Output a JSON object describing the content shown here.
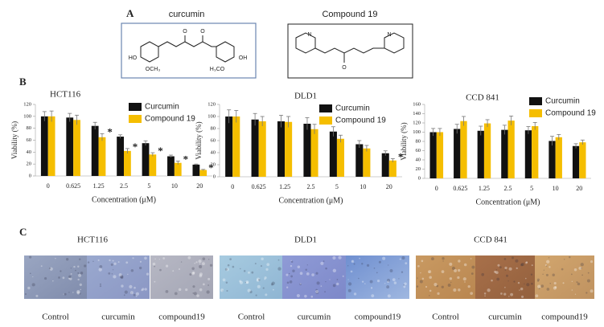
{
  "panel_labels": [
    "A",
    "B",
    "C"
  ],
  "structures": [
    {
      "name": "curcumin",
      "atoms": [
        "O",
        "O",
        "HO",
        "OCH₃",
        "H₃CO",
        "OH"
      ]
    },
    {
      "name": "Compound 19",
      "atoms": [
        "N",
        "N",
        "O"
      ]
    }
  ],
  "chart_data": [
    {
      "type": "bar",
      "title": "HCT116",
      "xlabel": "Concentration (μM)",
      "ylabel": "Viability (%)",
      "categories": [
        "0",
        "0.625",
        "1.25",
        "2.5",
        "5",
        "10",
        "20"
      ],
      "series": [
        {
          "name": "Curcumin",
          "color": "#111111",
          "values": [
            100,
            98,
            84,
            66,
            55,
            33,
            19
          ],
          "errors": [
            8,
            7,
            6,
            3,
            4,
            2,
            1
          ]
        },
        {
          "name": "Compound 19",
          "color": "#f5be00",
          "values": [
            100,
            94,
            65,
            42,
            36,
            22,
            10
          ],
          "errors": [
            9,
            8,
            6,
            4,
            3,
            3,
            1
          ]
        }
      ],
      "ylim": [
        0,
        120
      ],
      "yticks": [
        0,
        20,
        40,
        60,
        80,
        100,
        120
      ],
      "annotations": [
        {
          "text": "*",
          "category": "1.25"
        },
        {
          "text": "*",
          "category": "2.5"
        },
        {
          "text": "*",
          "category": "5"
        },
        {
          "text": "*",
          "category": "10"
        },
        {
          "text": "*",
          "category": "20"
        }
      ]
    },
    {
      "type": "bar",
      "title": "DLD1",
      "xlabel": "Concentration (μM)",
      "ylabel": "Viability (%)",
      "categories": [
        "0",
        "0.625",
        "1.25",
        "2.5",
        "5",
        "10",
        "20"
      ],
      "series": [
        {
          "name": "Curcumin",
          "color": "#111111",
          "values": [
            100,
            95,
            92,
            88,
            75,
            54,
            39
          ],
          "errors": [
            11,
            10,
            10,
            10,
            8,
            6,
            4
          ]
        },
        {
          "name": "Compound 19",
          "color": "#f5be00",
          "values": [
            100,
            92,
            91,
            79,
            63,
            47,
            27
          ],
          "errors": [
            10,
            8,
            9,
            8,
            6,
            5,
            3
          ]
        }
      ],
      "ylim": [
        0,
        120
      ],
      "yticks": [
        0,
        20,
        40,
        60,
        80,
        100,
        120
      ],
      "annotations": [
        {
          "text": "*",
          "category": "20"
        }
      ]
    },
    {
      "type": "bar",
      "title": "CCD 841",
      "xlabel": "Concentration (μM)",
      "ylabel": "Viability (%)",
      "categories": [
        "0",
        "0.625",
        "1.25",
        "2.5",
        "5",
        "10",
        "20"
      ],
      "series": [
        {
          "name": "Curcumin",
          "color": "#111111",
          "values": [
            100,
            107,
            103,
            105,
            104,
            81,
            70
          ],
          "errors": [
            8,
            10,
            10,
            10,
            8,
            10,
            5
          ]
        },
        {
          "name": "Compound 19",
          "color": "#f5be00",
          "values": [
            100,
            124,
            119,
            125,
            113,
            89,
            78
          ],
          "errors": [
            8,
            10,
            8,
            10,
            8,
            6,
            5
          ]
        }
      ],
      "ylim": [
        0,
        160
      ],
      "yticks": [
        0,
        20,
        40,
        60,
        80,
        100,
        120,
        140,
        160
      ],
      "annotations": []
    }
  ],
  "micrographs": [
    {
      "title": "HCT116",
      "labels": [
        "Control",
        "curcumin",
        "compound19"
      ]
    },
    {
      "title": "DLD1",
      "labels": [
        "Control",
        "curcumin",
        "compound19"
      ]
    },
    {
      "title": "CCD 841",
      "labels": [
        "Control",
        "curcumin",
        "compound19"
      ]
    }
  ]
}
